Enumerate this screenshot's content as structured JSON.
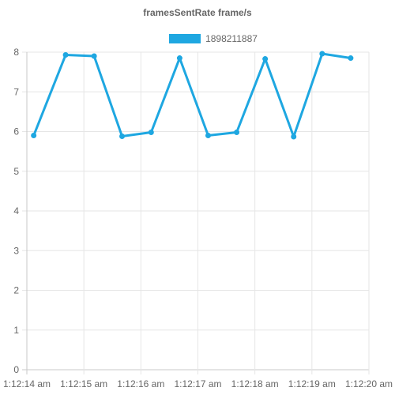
{
  "chart_data": {
    "type": "line",
    "title": "framesSentRate frame/s",
    "xlabel": "",
    "ylabel": "",
    "ylim": [
      0,
      8
    ],
    "y_ticks": [
      "0",
      "1",
      "2",
      "3",
      "4",
      "5",
      "6",
      "7",
      "8"
    ],
    "x_range_seconds": [
      0,
      6
    ],
    "x_tick_labels": [
      "1:12:14 am",
      "1:12:15 am",
      "1:12:16 am",
      "1:12:17 am",
      "1:12:18 am",
      "1:12:19 am",
      "1:12:20 am"
    ],
    "grid": true,
    "legend_position": "top",
    "series": [
      {
        "name": "1898211887",
        "color": "#1ea7e1",
        "x_seconds": [
          0.12,
          0.68,
          1.18,
          1.67,
          2.18,
          2.68,
          3.18,
          3.68,
          4.18,
          4.68,
          5.18,
          5.68
        ],
        "values": [
          5.9,
          7.93,
          7.9,
          5.88,
          5.98,
          7.85,
          5.9,
          5.98,
          7.83,
          5.87,
          7.96,
          7.85
        ]
      }
    ]
  }
}
